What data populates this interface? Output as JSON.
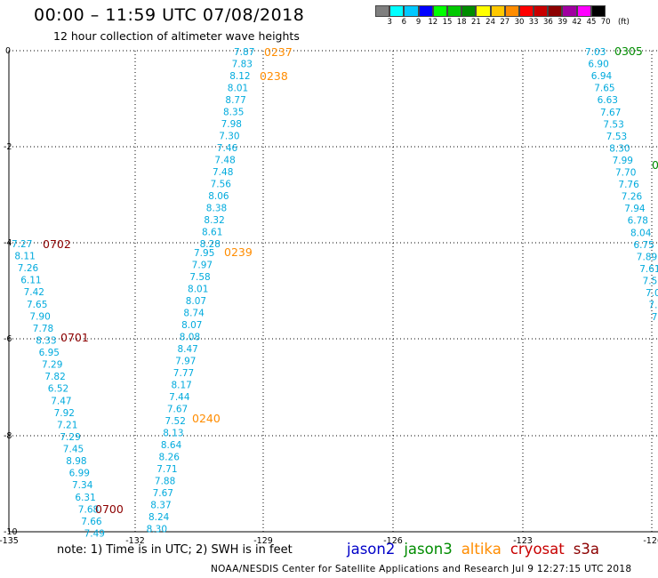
{
  "header": {
    "title": "00:00 – 11:59 UTC 07/08/2018",
    "subtitle": "12 hour collection of altimeter wave heights"
  },
  "legend": {
    "colors": [
      "#7f7f7f",
      "#00ffff",
      "#00c8ff",
      "#0000ff",
      "#00ff00",
      "#00c800",
      "#008c00",
      "#ffff00",
      "#ffc800",
      "#ff8c00",
      "#ff0000",
      "#c80000",
      "#8c0000",
      "#a000a0",
      "#ff00ff",
      "#000000"
    ],
    "labels": [
      "3",
      "6",
      "9",
      "12",
      "15",
      "18",
      "21",
      "24",
      "27",
      "30",
      "33",
      "36",
      "39",
      "42",
      "45",
      "70",
      "(ft)"
    ]
  },
  "axes": {
    "x_ticks": [
      "-135",
      "-132",
      "-129",
      "-126",
      "-123",
      "-12("
    ],
    "y_ticks": [
      "0",
      "-2",
      "-4",
      "-6",
      "-8",
      "-10"
    ]
  },
  "tracks": {
    "left": [
      "7.27",
      "8.11",
      "7.26",
      "6.11",
      "7.42",
      "7.65",
      "7.90",
      "7.78",
      "8.33",
      "6.95",
      "7.29",
      "7.82",
      "6.52",
      "7.47",
      "7.92",
      "7.21",
      "7.29",
      "7.45",
      "8.98",
      "6.99",
      "7.34",
      "6.31",
      "7.68",
      "7.66",
      "7.49"
    ],
    "middle_upper": [
      "7.87",
      "7.83",
      "8.12",
      "8.01",
      "8.77",
      "8.35",
      "7.98",
      "7.30",
      "7.46",
      "7.48",
      "7.48",
      "7.56",
      "8.06",
      "8.38",
      "8.32",
      "8.61",
      "8.28"
    ],
    "middle_lower": [
      "7.95",
      "7.97",
      "7.58",
      "8.01",
      "8.07",
      "8.74",
      "8.07",
      "8.08",
      "8.47",
      "7.97",
      "7.77",
      "8.17",
      "7.44",
      "7.67",
      "7.52",
      "8.13",
      "8.64",
      "8.26",
      "7.71",
      "7.88",
      "7.67",
      "8.37",
      "8.24",
      "8.30"
    ],
    "right": [
      "7.03",
      "6.90",
      "6.94",
      "7.65",
      "6.63",
      "7.67",
      "7.53",
      "7.53",
      "8.30",
      "7.99",
      "7.70",
      "7.76",
      "7.26",
      "7.94",
      "6.78",
      "8.04",
      "6.75",
      "7.89",
      "7.61",
      "7.5",
      "7.0",
      "7.",
      "7"
    ]
  },
  "time_labels": [
    {
      "text": "0237",
      "color": "#ff8c00"
    },
    {
      "text": "0238",
      "color": "#ff8c00"
    },
    {
      "text": "0239",
      "color": "#ff8c00"
    },
    {
      "text": "0240",
      "color": "#ff8c00"
    },
    {
      "text": "0702",
      "color": "#8c0000"
    },
    {
      "text": "0701",
      "color": "#8c0000"
    },
    {
      "text": "0700",
      "color": "#8c0000"
    },
    {
      "text": "0305",
      "color": "#008c00"
    },
    {
      "text": "0",
      "color": "#008c00"
    }
  ],
  "note": "note: 1) Time is in UTC; 2) SWH is in feet",
  "satellites": [
    {
      "name": "jason2",
      "color": "#0000c8"
    },
    {
      "name": "jason3",
      "color": "#008c00"
    },
    {
      "name": "altika",
      "color": "#ff8c00"
    },
    {
      "name": "cryosat",
      "color": "#c80000"
    },
    {
      "name": "s3a",
      "color": "#8c0000"
    }
  ],
  "footer": "NOAA/NESDIS Center for Satellite Applications and Research   Jul  9 12:27:15 UTC 2018",
  "value_color": "#00aadd"
}
